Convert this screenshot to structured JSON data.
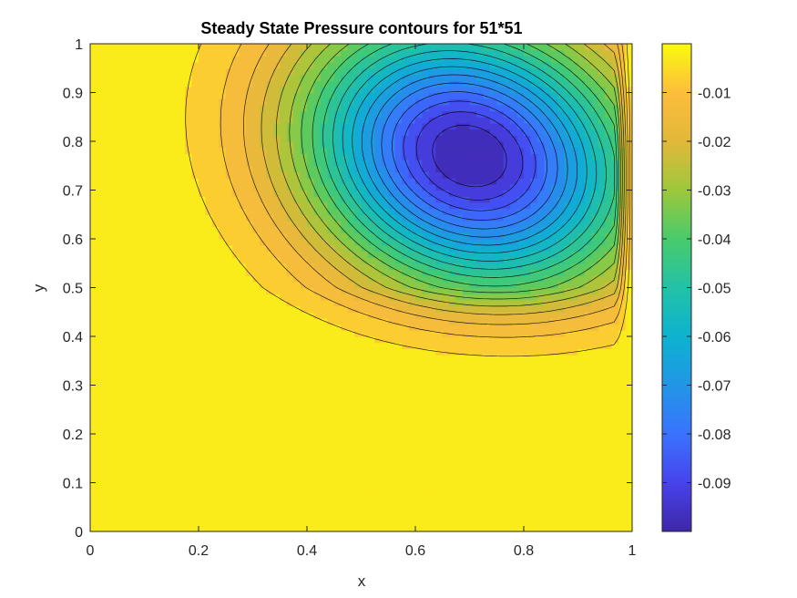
{
  "chart_data": {
    "type": "contour",
    "title": "Steady State Pressure contours for 51*51",
    "xlabel": "x",
    "ylabel": "y",
    "xlim": [
      0,
      1
    ],
    "ylim": [
      0,
      1
    ],
    "x_ticks": [
      0,
      0.2,
      0.4,
      0.6,
      0.8,
      1
    ],
    "x_tick_labels": [
      "0",
      "0.2",
      "0.4",
      "0.6",
      "0.8",
      "1"
    ],
    "y_ticks": [
      0,
      0.1,
      0.2,
      0.3,
      0.4,
      0.5,
      0.6,
      0.7,
      0.8,
      0.9,
      1
    ],
    "y_tick_labels": [
      "0",
      "0.1",
      "0.2",
      "0.3",
      "0.4",
      "0.5",
      "0.6",
      "0.7",
      "0.8",
      "0.9",
      "1"
    ],
    "colorbar": {
      "colormap": "parula",
      "range": [
        -0.1,
        0
      ],
      "ticks": [
        -0.01,
        -0.02,
        -0.03,
        -0.04,
        -0.05,
        -0.06,
        -0.07,
        -0.08,
        -0.09
      ],
      "tick_labels": [
        "-0.01",
        "-0.02",
        "-0.03",
        "-0.04",
        "-0.05",
        "-0.06",
        "-0.07",
        "-0.08",
        "-0.09"
      ]
    },
    "contour_levels": 20,
    "minimum": {
      "x": 0.7,
      "y": 0.77,
      "value": -0.1
    },
    "field_description": "Single pressure trough centered near (0.70, 0.77); pressure near 0 below y approx 0.3",
    "grid": false,
    "colors": {
      "low": "#3e26a8",
      "high": "#f9fb0e",
      "contour_line": "#000000",
      "axes": "#262626"
    }
  }
}
